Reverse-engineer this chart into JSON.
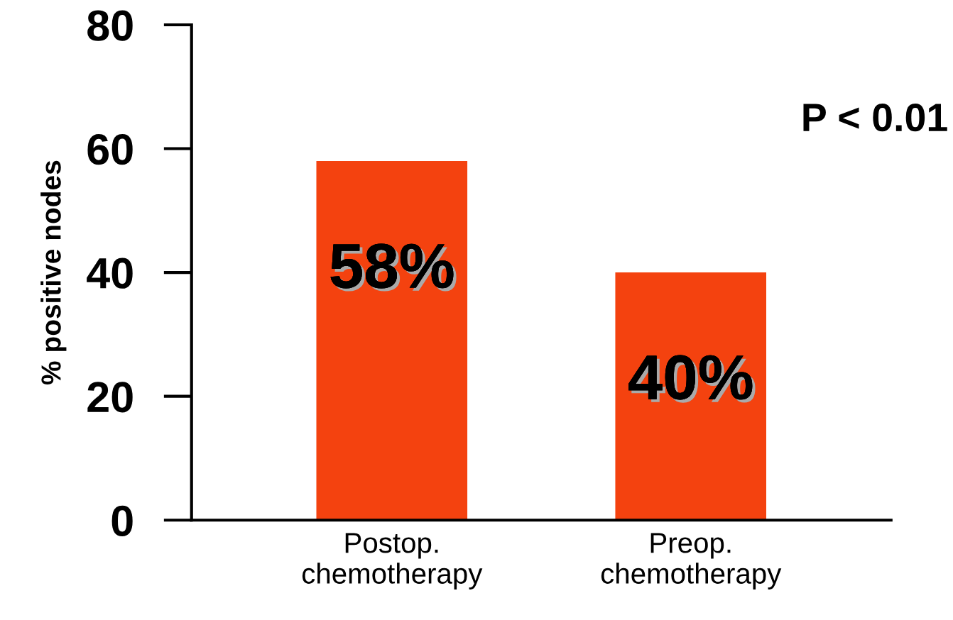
{
  "chart_data": {
    "type": "bar",
    "ylabel": "% positive nodes",
    "categories": [
      "Postop.\nchemotherapy",
      "Preop.\nchemotherapy"
    ],
    "values": [
      58,
      40
    ],
    "value_labels": [
      "58%",
      "40%"
    ],
    "color": "#f4420f",
    "ylim": [
      0,
      80
    ],
    "yticks": [
      0,
      20,
      40,
      60,
      80
    ],
    "grid": false,
    "legend": false,
    "annotations": [
      "P < 0.01"
    ]
  }
}
